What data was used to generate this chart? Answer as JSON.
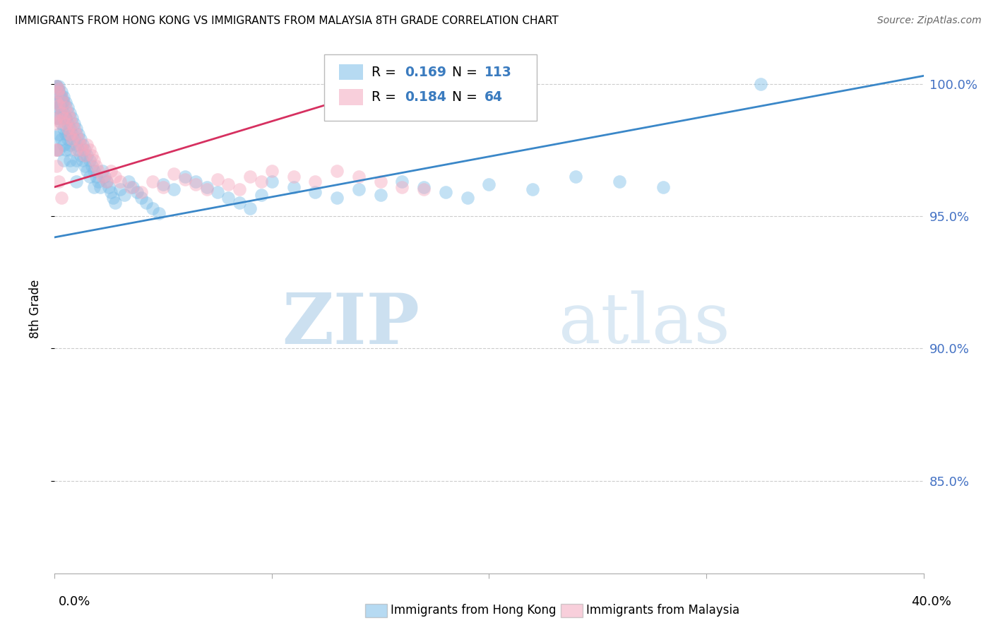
{
  "title": "IMMIGRANTS FROM HONG KONG VS IMMIGRANTS FROM MALAYSIA 8TH GRADE CORRELATION CHART",
  "source": "Source: ZipAtlas.com",
  "ylabel": "8th Grade",
  "ytick_vals": [
    0.85,
    0.9,
    0.95,
    1.0
  ],
  "ytick_labels": [
    "85.0%",
    "90.0%",
    "95.0%",
    "100.0%"
  ],
  "xlim": [
    0.0,
    0.4
  ],
  "ylim": [
    0.815,
    1.015
  ],
  "blue_color": "#7bbde8",
  "pink_color": "#f4a8be",
  "blue_line_color": "#3a87c8",
  "pink_line_color": "#d63060",
  "blue_line": [
    0.0,
    0.4,
    0.942,
    1.003
  ],
  "pink_line": [
    0.0,
    0.165,
    0.961,
    1.002
  ],
  "hk_x": [
    0.0005,
    0.001,
    0.001,
    0.001,
    0.001,
    0.0015,
    0.0015,
    0.002,
    0.002,
    0.002,
    0.002,
    0.002,
    0.0025,
    0.003,
    0.003,
    0.003,
    0.003,
    0.0035,
    0.004,
    0.004,
    0.004,
    0.004,
    0.004,
    0.005,
    0.005,
    0.005,
    0.005,
    0.006,
    0.006,
    0.006,
    0.007,
    0.007,
    0.007,
    0.007,
    0.008,
    0.008,
    0.009,
    0.009,
    0.01,
    0.01,
    0.01,
    0.011,
    0.011,
    0.012,
    0.012,
    0.013,
    0.013,
    0.014,
    0.014,
    0.015,
    0.015,
    0.016,
    0.016,
    0.017,
    0.018,
    0.018,
    0.019,
    0.02,
    0.021,
    0.022,
    0.023,
    0.024,
    0.025,
    0.026,
    0.027,
    0.028,
    0.03,
    0.032,
    0.034,
    0.036,
    0.038,
    0.04,
    0.042,
    0.045,
    0.048,
    0.05,
    0.055,
    0.06,
    0.065,
    0.07,
    0.075,
    0.08,
    0.085,
    0.09,
    0.095,
    0.1,
    0.11,
    0.12,
    0.13,
    0.14,
    0.15,
    0.16,
    0.17,
    0.18,
    0.19,
    0.2,
    0.22,
    0.24,
    0.26,
    0.28,
    0.001,
    0.001,
    0.002,
    0.002,
    0.003,
    0.003,
    0.004,
    0.005,
    0.006,
    0.007,
    0.008,
    0.01,
    0.325
  ],
  "hk_y": [
    0.98,
    0.999,
    0.993,
    0.987,
    0.975,
    0.998,
    0.991,
    0.999,
    0.993,
    0.987,
    0.981,
    0.975,
    0.995,
    0.997,
    0.991,
    0.985,
    0.979,
    0.993,
    0.995,
    0.989,
    0.983,
    0.977,
    0.971,
    0.993,
    0.987,
    0.981,
    0.975,
    0.991,
    0.985,
    0.979,
    0.989,
    0.983,
    0.977,
    0.971,
    0.987,
    0.981,
    0.985,
    0.979,
    0.983,
    0.977,
    0.971,
    0.981,
    0.975,
    0.979,
    0.973,
    0.977,
    0.971,
    0.975,
    0.969,
    0.973,
    0.967,
    0.971,
    0.965,
    0.969,
    0.967,
    0.961,
    0.965,
    0.963,
    0.961,
    0.967,
    0.965,
    0.963,
    0.961,
    0.959,
    0.957,
    0.955,
    0.96,
    0.958,
    0.963,
    0.961,
    0.959,
    0.957,
    0.955,
    0.953,
    0.951,
    0.962,
    0.96,
    0.965,
    0.963,
    0.961,
    0.959,
    0.957,
    0.955,
    0.953,
    0.958,
    0.963,
    0.961,
    0.959,
    0.957,
    0.96,
    0.958,
    0.963,
    0.961,
    0.959,
    0.957,
    0.962,
    0.96,
    0.965,
    0.963,
    0.961,
    0.999,
    0.993,
    0.997,
    0.991,
    0.995,
    0.989,
    0.993,
    0.987,
    0.981,
    0.975,
    0.969,
    0.963,
    1.0
  ],
  "my_x": [
    0.0005,
    0.001,
    0.001,
    0.001,
    0.001,
    0.0015,
    0.002,
    0.002,
    0.002,
    0.003,
    0.003,
    0.004,
    0.004,
    0.005,
    0.005,
    0.006,
    0.006,
    0.007,
    0.007,
    0.008,
    0.008,
    0.009,
    0.01,
    0.01,
    0.011,
    0.012,
    0.013,
    0.014,
    0.015,
    0.016,
    0.017,
    0.018,
    0.019,
    0.02,
    0.022,
    0.024,
    0.026,
    0.028,
    0.03,
    0.035,
    0.04,
    0.045,
    0.05,
    0.055,
    0.06,
    0.065,
    0.07,
    0.075,
    0.08,
    0.085,
    0.09,
    0.095,
    0.1,
    0.11,
    0.12,
    0.13,
    0.14,
    0.15,
    0.16,
    0.17,
    0.001,
    0.001,
    0.002,
    0.003
  ],
  "my_y": [
    0.985,
    0.999,
    0.993,
    0.987,
    0.975,
    0.997,
    0.998,
    0.992,
    0.986,
    0.995,
    0.989,
    0.993,
    0.987,
    0.991,
    0.985,
    0.989,
    0.983,
    0.987,
    0.981,
    0.985,
    0.979,
    0.983,
    0.981,
    0.975,
    0.979,
    0.977,
    0.975,
    0.973,
    0.977,
    0.975,
    0.973,
    0.971,
    0.969,
    0.967,
    0.965,
    0.963,
    0.967,
    0.965,
    0.963,
    0.961,
    0.959,
    0.963,
    0.961,
    0.966,
    0.964,
    0.962,
    0.96,
    0.964,
    0.962,
    0.96,
    0.965,
    0.963,
    0.967,
    0.965,
    0.963,
    0.967,
    0.965,
    0.963,
    0.961,
    0.96,
    0.975,
    0.969,
    0.963,
    0.957
  ]
}
